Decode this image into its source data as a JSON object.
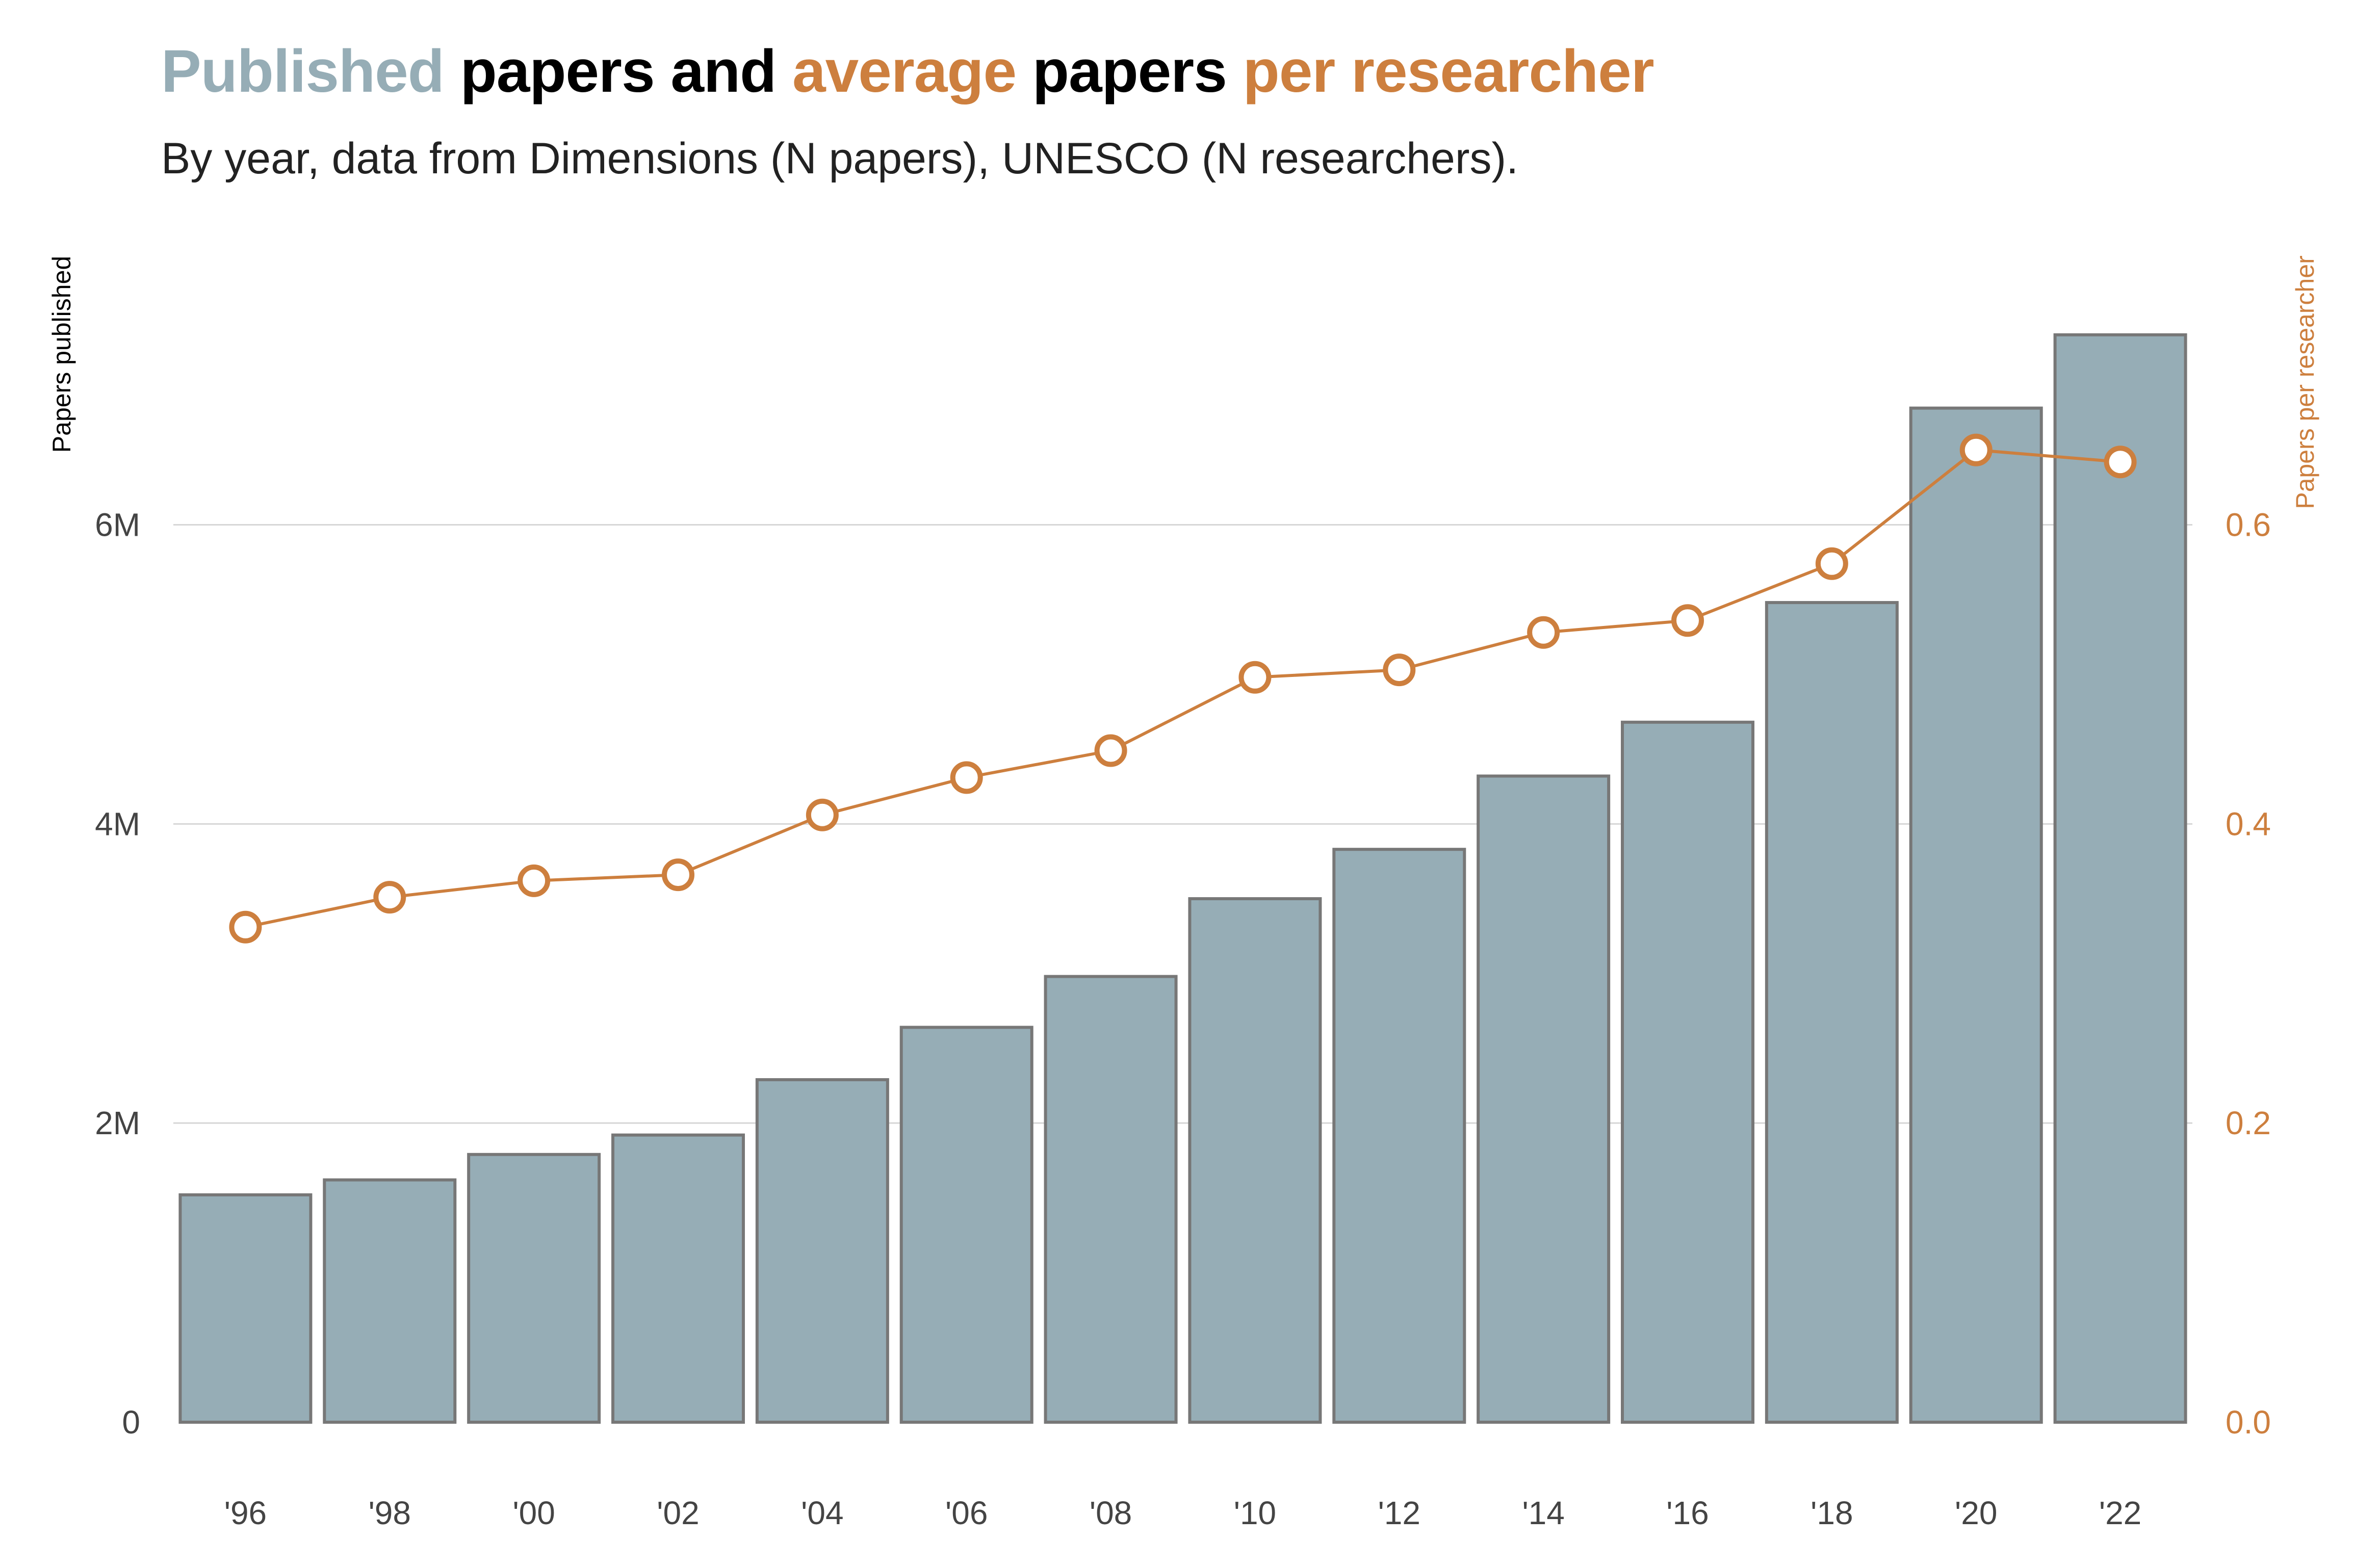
{
  "title": {
    "segments": [
      {
        "text": "Published",
        "color": "#96adb6"
      },
      {
        "text": " papers and ",
        "color": "#000000"
      },
      {
        "text": "average",
        "color": "#cd7f3e"
      },
      {
        "text": " papers ",
        "color": "#000000"
      },
      {
        "text": "per researcher",
        "color": "#cd7f3e"
      }
    ]
  },
  "subtitle": "By year, data from Dimensions (N papers), UNESCO (N researchers).",
  "colors": {
    "bar_fill": "#96adb6",
    "bar_stroke": "#777777",
    "line": "#cd7f3e",
    "grid": "#d6d6d6",
    "left_axis_title": "#000000"
  },
  "chart_data": {
    "type": "bar+line",
    "categories": [
      "'96",
      "'98",
      "'00",
      "'02",
      "'04",
      "'06",
      "'08",
      "'10",
      "'12",
      "'14",
      "'16",
      "'18",
      "'20",
      "'22"
    ],
    "series": [
      {
        "type": "bar",
        "axis": "left",
        "values": [
          1520000,
          1620000,
          1790000,
          1920000,
          2290000,
          2640000,
          2980000,
          3500000,
          3830000,
          4320000,
          4680000,
          5480000,
          6780000,
          7270000
        ]
      },
      {
        "type": "line",
        "axis": "right",
        "values": [
          0.331,
          0.351,
          0.362,
          0.366,
          0.406,
          0.431,
          0.449,
          0.498,
          0.503,
          0.528,
          0.536,
          0.574,
          0.65,
          0.642
        ]
      }
    ],
    "left_axis": {
      "label": "Papers published",
      "ylim": [
        0,
        7600000
      ],
      "ticks": [
        0,
        2000000,
        4000000,
        6000000
      ],
      "tick_labels": [
        "0",
        "2M",
        "4M",
        "6M"
      ]
    },
    "right_axis": {
      "label": "Papers per researcher",
      "ylim": [
        0,
        0.76
      ],
      "ticks": [
        0.0,
        0.2,
        0.4,
        0.6
      ],
      "tick_labels": [
        "0.0",
        "0.2",
        "0.4",
        "0.6"
      ]
    },
    "grid": true
  }
}
